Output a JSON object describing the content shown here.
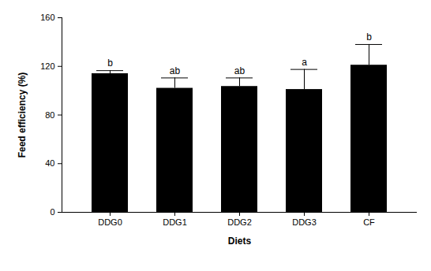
{
  "chart_data": {
    "type": "bar",
    "x_label": "Diets",
    "y_label": "Feed efficiency (%)",
    "categories": [
      "DDG0",
      "DDG1",
      "DDG2",
      "DDG3",
      "CF"
    ],
    "values": [
      114,
      102,
      103.5,
      101,
      121
    ],
    "errors": [
      2.5,
      8.5,
      7,
      16.5,
      17
    ],
    "annotations": [
      "b",
      "ab",
      "ab",
      "a",
      "b"
    ],
    "color": "#000000",
    "ylim": [
      0,
      160
    ],
    "yticks": [
      0,
      40,
      80,
      120,
      160
    ],
    "grid": false
  }
}
